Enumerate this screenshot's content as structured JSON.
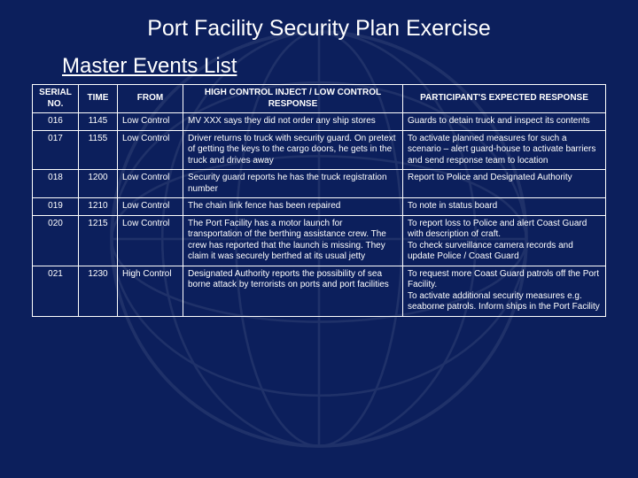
{
  "title": "Port Facility Security Plan Exercise",
  "subtitle": "Master Events List",
  "columns": [
    "SERIAL NO.",
    "TIME",
    "FROM",
    "HIGH CONTROL INJECT /\nLOW CONTROL RESPONSE",
    "PARTICIPANT'S EXPECTED RESPONSE"
  ],
  "rows": [
    {
      "serial": "016",
      "time": "1145",
      "from": "Low Control",
      "inject": "MV XXX says they did not order any ship stores",
      "response": "Guards to detain truck and inspect its contents"
    },
    {
      "serial": "017",
      "time": "1155",
      "from": "Low Control",
      "inject": "Driver returns to truck with security guard. On pretext of getting the keys to the cargo doors, he gets in the truck and drives away",
      "response": "To activate planned measures for such a scenario – alert guard-house to activate barriers and send response team to location"
    },
    {
      "serial": "018",
      "time": "1200",
      "from": "Low Control",
      "inject": "Security guard reports he has the truck registration number",
      "response": "Report to Police and Designated Authority"
    },
    {
      "serial": "019",
      "time": "1210",
      "from": "Low Control",
      "inject": "The chain link fence has been repaired",
      "response": "To note in status board"
    },
    {
      "serial": "020",
      "time": "1215",
      "from": "Low Control",
      "inject": "The Port Facility has a motor launch for transportation of the berthing assistance crew. The crew has reported that the launch is missing. They claim it was securely berthed at its usual jetty",
      "response": "To report loss to Police and alert Coast Guard with description of craft.\nTo check surveillance camera records and update Police / Coast Guard"
    },
    {
      "serial": "021",
      "time": "1230",
      "from": "High Control",
      "inject": "Designated Authority reports the possibility of sea borne attack by terrorists on ports and port facilities",
      "response": "To request more Coast Guard patrols off the Port Facility.\nTo activate additional security measures e.g. seaborne patrols. Inform ships in the Port Facility"
    }
  ],
  "colors": {
    "background": "#0c1f5c",
    "text": "#ffffff",
    "border": "#ffffff"
  }
}
